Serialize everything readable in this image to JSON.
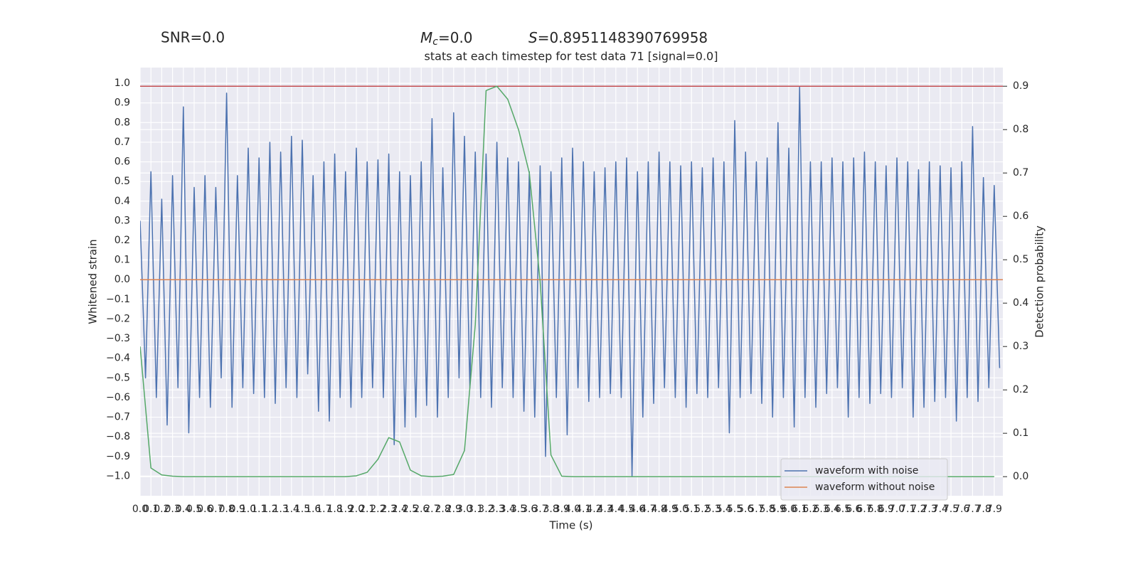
{
  "chart_data": {
    "type": "line",
    "title": "stats at each timestep for test data 71 [signal=0.0]",
    "annotations": {
      "snr": "SNR=0.0",
      "mc": {
        "symbol": "M",
        "subscript": "c",
        "text": "=0.0"
      },
      "s": {
        "symbol": "S",
        "text": "=0.8951148390769958"
      }
    },
    "xlabel": "Time (s)",
    "ylabel": "Whitened strain",
    "y2label": "Detection probability",
    "xlim": [
      0,
      7.98
    ],
    "ylim": [
      -1.1,
      1.08
    ],
    "y2lim": [
      -0.044,
      0.943
    ],
    "xticks": [
      {
        "value": 0,
        "label": "0.0"
      },
      0.1,
      0.2,
      0.3,
      0.4,
      0.5,
      0.6,
      0.7,
      0.8,
      0.9,
      {
        "value": 1,
        "label": "1.0"
      },
      1.1,
      1.2,
      1.3,
      1.4,
      1.5,
      1.6,
      1.7,
      1.8,
      1.9,
      {
        "value": 2,
        "label": "2.0"
      },
      2.1,
      2.2,
      2.3,
      2.4,
      2.5,
      2.6,
      2.7,
      2.8,
      2.9,
      {
        "value": 3,
        "label": "3.0"
      },
      3.1,
      3.2,
      3.3,
      3.4,
      3.5,
      3.6,
      3.7,
      3.8,
      3.9,
      {
        "value": 4,
        "label": "4.0"
      },
      4.1,
      4.2,
      4.3,
      4.4,
      4.5,
      4.6,
      4.7,
      4.8,
      4.9,
      {
        "value": 5,
        "label": "5.0"
      },
      5.1,
      5.2,
      5.3,
      5.4,
      5.5,
      5.6,
      5.7,
      5.8,
      5.9,
      {
        "value": 6,
        "label": "6.0"
      },
      6.1,
      6.2,
      6.3,
      6.4,
      6.5,
      6.6,
      6.7,
      6.8,
      6.9,
      {
        "value": 7,
        "label": "7.0"
      },
      7.1,
      7.2,
      7.3,
      7.4,
      7.5,
      7.6,
      7.7,
      7.8,
      7.9
    ],
    "yticks": [
      {
        "value": -1,
        "label": "−1.0"
      },
      {
        "value": -0.9,
        "label": "−0.9"
      },
      {
        "value": -0.8,
        "label": "−0.8"
      },
      {
        "value": -0.7,
        "label": "−0.7"
      },
      {
        "value": -0.6,
        "label": "−0.6"
      },
      {
        "value": -0.5,
        "label": "−0.5"
      },
      {
        "value": -0.4,
        "label": "−0.4"
      },
      {
        "value": -0.3,
        "label": "−0.3"
      },
      {
        "value": -0.2,
        "label": "−0.2"
      },
      {
        "value": -0.1,
        "label": "−0.1"
      },
      {
        "value": 0,
        "label": "0.0"
      },
      0.1,
      0.2,
      0.3,
      0.4,
      0.5,
      0.6,
      0.7,
      0.8,
      0.9,
      {
        "value": 1,
        "label": "1.0"
      }
    ],
    "y2ticks": [
      {
        "value": 0,
        "label": "0.0"
      },
      0.1,
      0.2,
      0.3,
      0.4,
      0.5,
      0.6,
      0.7,
      0.8,
      0.9
    ],
    "grid": true,
    "legend": "lower right",
    "y2_hline": {
      "value": 0.9,
      "color": "#c44e52"
    },
    "series": [
      {
        "name": "waveform with noise",
        "color": "#4c72b0",
        "x": [
          0,
          0.05,
          0.1,
          0.15,
          0.2,
          0.25,
          0.3,
          0.35,
          0.4,
          0.45,
          0.5,
          0.55,
          0.6,
          0.65,
          0.7,
          0.75,
          0.8,
          0.85,
          0.9,
          0.95,
          1,
          1.05,
          1.1,
          1.15,
          1.2,
          1.25,
          1.3,
          1.35,
          1.4,
          1.45,
          1.5,
          1.55,
          1.6,
          1.65,
          1.7,
          1.75,
          1.8,
          1.85,
          1.9,
          1.95,
          2,
          2.05,
          2.1,
          2.15,
          2.2,
          2.25,
          2.3,
          2.35,
          2.4,
          2.45,
          2.5,
          2.55,
          2.6,
          2.65,
          2.7,
          2.75,
          2.8,
          2.85,
          2.9,
          2.95,
          3,
          3.05,
          3.1,
          3.15,
          3.2,
          3.25,
          3.3,
          3.35,
          3.4,
          3.45,
          3.5,
          3.55,
          3.6,
          3.65,
          3.7,
          3.75,
          3.8,
          3.85,
          3.9,
          3.95,
          4,
          4.05,
          4.1,
          4.15,
          4.2,
          4.25,
          4.3,
          4.35,
          4.4,
          4.45,
          4.5,
          4.55,
          4.6,
          4.65,
          4.7,
          4.75,
          4.8,
          4.85,
          4.9,
          4.95,
          5,
          5.05,
          5.1,
          5.15,
          5.2,
          5.25,
          5.3,
          5.35,
          5.4,
          5.45,
          5.5,
          5.55,
          5.6,
          5.65,
          5.7,
          5.75,
          5.8,
          5.85,
          5.9,
          5.95,
          6,
          6.05,
          6.1,
          6.15,
          6.2,
          6.25,
          6.3,
          6.35,
          6.4,
          6.45,
          6.5,
          6.55,
          6.6,
          6.65,
          6.7,
          6.75,
          6.8,
          6.85,
          6.9,
          6.95,
          7,
          7.05,
          7.1,
          7.15,
          7.2,
          7.25,
          7.3,
          7.35,
          7.4,
          7.45,
          7.5,
          7.55,
          7.6,
          7.65,
          7.7,
          7.75,
          7.8,
          7.85,
          7.9,
          7.95
        ],
        "values": [
          0.3,
          -0.5,
          0.55,
          -0.6,
          0.41,
          -0.74,
          0.53,
          -0.55,
          0.88,
          -0.78,
          0.47,
          -0.6,
          0.53,
          -0.65,
          0.47,
          -0.5,
          0.95,
          -0.65,
          0.53,
          -0.55,
          0.67,
          -0.58,
          0.62,
          -0.6,
          0.7,
          -0.63,
          0.65,
          -0.55,
          0.73,
          -0.6,
          0.71,
          -0.48,
          0.53,
          -0.67,
          0.6,
          -0.72,
          0.64,
          -0.6,
          0.55,
          -0.65,
          0.67,
          -0.6,
          0.6,
          -0.55,
          0.61,
          -0.6,
          0.64,
          -0.84,
          0.55,
          -0.75,
          0.53,
          -0.7,
          0.6,
          -0.64,
          0.82,
          -0.7,
          0.57,
          -0.6,
          0.85,
          -0.5,
          0.73,
          -0.55,
          0.65,
          -0.6,
          0.64,
          -0.65,
          0.7,
          -0.55,
          0.62,
          -0.6,
          0.6,
          -0.67,
          0.55,
          -0.7,
          0.58,
          -0.9,
          0.55,
          -0.6,
          0.62,
          -0.79,
          0.67,
          -0.55,
          0.6,
          -0.62,
          0.55,
          -0.6,
          0.57,
          -0.58,
          0.6,
          -0.6,
          0.62,
          -1.0,
          0.55,
          -0.7,
          0.6,
          -0.63,
          0.65,
          -0.55,
          0.6,
          -0.6,
          0.58,
          -0.65,
          0.6,
          -0.58,
          0.57,
          -0.6,
          0.62,
          -0.55,
          0.6,
          -0.78,
          0.81,
          -0.6,
          0.65,
          -0.58,
          0.6,
          -0.63,
          0.62,
          -0.7,
          0.8,
          -0.6,
          0.67,
          -0.75,
          0.98,
          -0.6,
          0.6,
          -0.65,
          0.6,
          -0.58,
          0.62,
          -0.55,
          0.6,
          -0.7,
          0.62,
          -0.6,
          0.65,
          -0.63,
          0.6,
          -0.58,
          0.58,
          -0.6,
          0.62,
          -0.55,
          0.6,
          -0.7,
          0.56,
          -0.65,
          0.6,
          -0.62,
          0.58,
          -0.6,
          0.57,
          -0.72,
          0.6,
          -0.6,
          0.78,
          -0.62,
          0.52,
          -0.55,
          0.48,
          -0.45
        ]
      },
      {
        "name": "waveform without noise",
        "color": "#dd8452",
        "x": [
          0,
          7.98
        ],
        "values": [
          0,
          0
        ]
      },
      {
        "color": "#55a868",
        "axis": "y2",
        "x": [
          0,
          0.1,
          0.2,
          0.3,
          0.4,
          0.5,
          0.6,
          0.7,
          0.8,
          0.9,
          1,
          1.1,
          1.2,
          1.3,
          1.4,
          1.5,
          1.6,
          1.7,
          1.8,
          1.9,
          2,
          2.1,
          2.2,
          2.3,
          2.4,
          2.5,
          2.6,
          2.7,
          2.8,
          2.9,
          3,
          3.1,
          3.2,
          3.3,
          3.4,
          3.5,
          3.6,
          3.7,
          3.8,
          3.9,
          4,
          4.1,
          4.2,
          4.3,
          4.4,
          4.5,
          4.6,
          4.7,
          4.8,
          4.9,
          5,
          5.1,
          5.2,
          5.3,
          5.4,
          5.5,
          5.6,
          5.7,
          5.8,
          5.9,
          6,
          6.1,
          6.2,
          6.3,
          6.4,
          6.5,
          6.6,
          6.7,
          6.8,
          6.9,
          7,
          7.1,
          7.2,
          7.3,
          7.4,
          7.5,
          7.6,
          7.7,
          7.8,
          7.9
        ],
        "values": [
          0.3,
          0.02,
          0.004,
          0.001,
          0,
          0,
          0,
          0,
          0,
          0,
          0,
          0,
          0,
          0,
          0,
          0,
          0,
          0,
          0,
          0,
          0.002,
          0.01,
          0.04,
          0.09,
          0.08,
          0.015,
          0.002,
          0,
          0.001,
          0.005,
          0.06,
          0.35,
          0.89,
          0.9,
          0.87,
          0.8,
          0.7,
          0.45,
          0.05,
          0.001,
          0,
          0,
          0,
          0,
          0,
          0,
          0,
          0,
          0,
          0,
          0,
          0,
          0,
          0,
          0,
          0,
          0,
          0,
          0,
          0,
          0,
          0,
          0,
          0,
          0,
          0,
          0,
          0,
          0,
          0,
          0,
          0,
          0,
          0,
          0,
          0,
          0,
          0,
          0,
          0
        ]
      }
    ]
  }
}
